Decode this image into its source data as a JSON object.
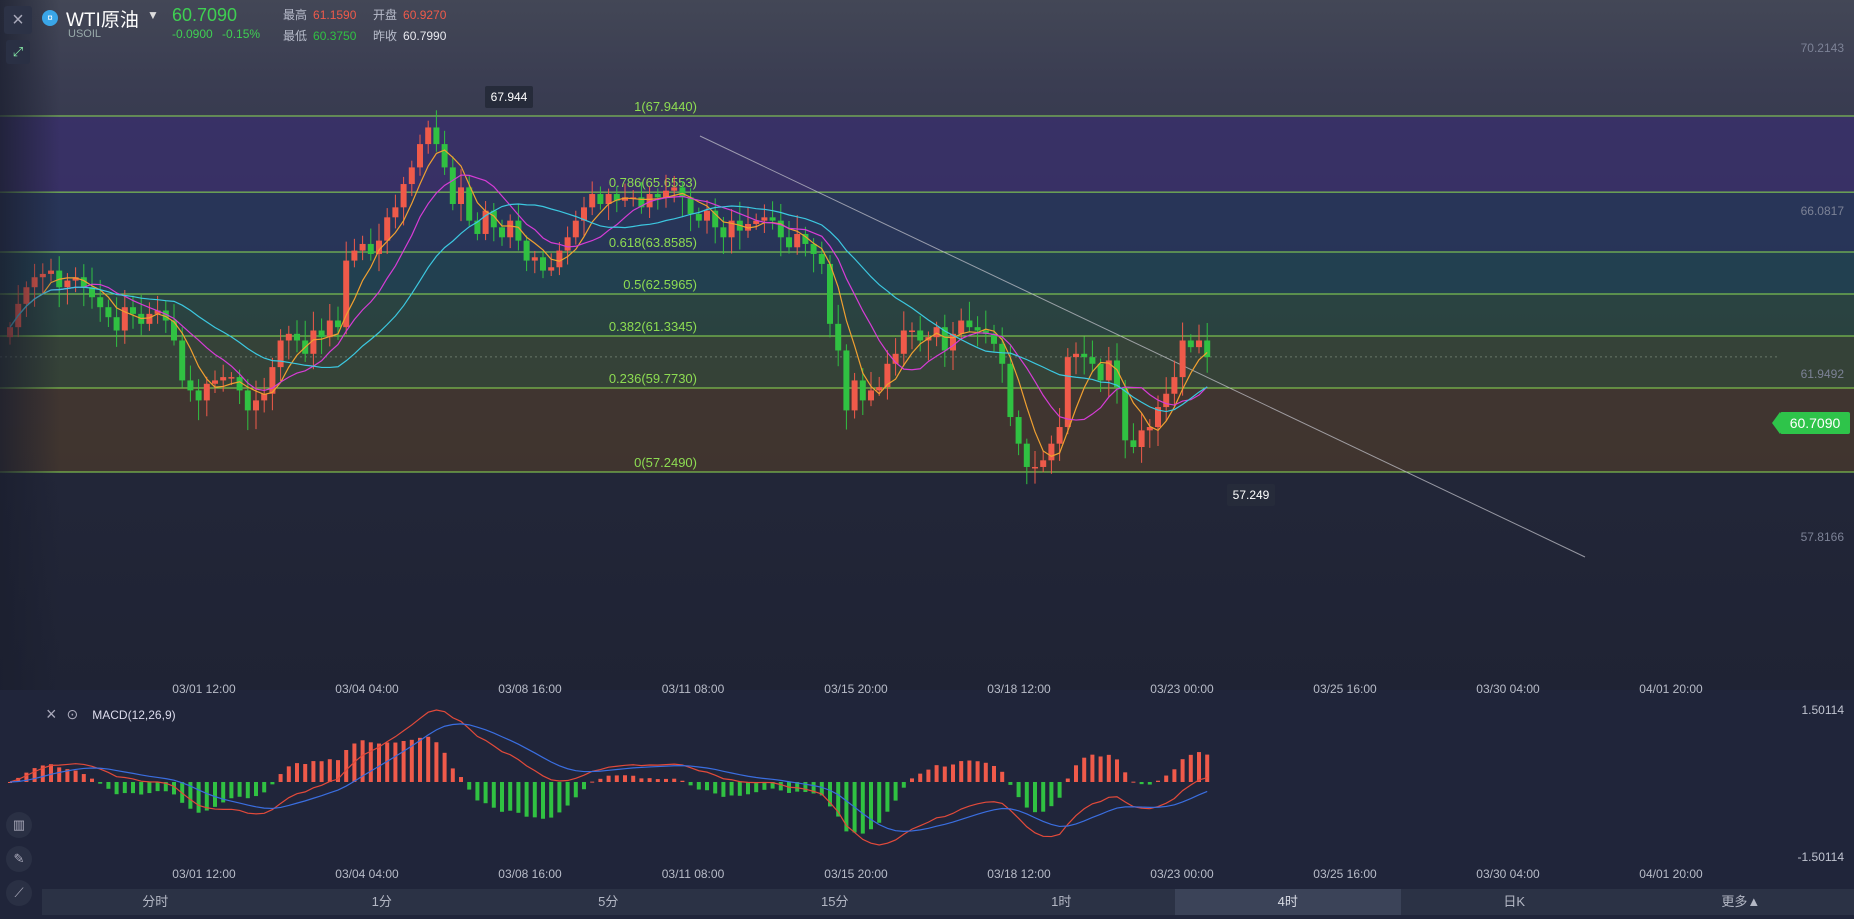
{
  "symbol": {
    "name": "WTI原油",
    "code": "USOIL",
    "price": "60.7090",
    "change": "-0.0900",
    "change_pct": "-0.15%",
    "high_label": "最高",
    "high": "61.1590",
    "open_label": "开盘",
    "open": "60.9270",
    "low_label": "最低",
    "low": "60.3750",
    "prev_close_label": "昨收",
    "prev_close": "60.7990"
  },
  "colors": {
    "up": "#ef5a4a",
    "down": "#30c142",
    "fib_line": "#8ddc52",
    "ma_orange": "#f0a030",
    "ma_magenta": "#d63cd6",
    "ma_cyan": "#3cc8e0",
    "macd_dif": "#e24a3a",
    "macd_dea": "#3a6ee0"
  },
  "icons": {
    "close": "close-icon",
    "draw": "draw-tool-icon",
    "indicator_settings": "gear-icon",
    "candles": "candlestick-icon",
    "pencil": "pencil-icon",
    "chart_type": "line-chart-icon"
  },
  "price_axis": {
    "labels": [
      "70.2143",
      "66.0817",
      "61.9492",
      "57.8166"
    ],
    "current": "60.7090"
  },
  "macd_axis": {
    "top": "1.50114",
    "bottom": "-1.50114"
  },
  "time_labels": [
    "03/01 12:00",
    "03/04 04:00",
    "03/08 16:00",
    "03/11 08:00",
    "03/15 20:00",
    "03/18 12:00",
    "03/23 00:00",
    "03/25 16:00",
    "03/30 04:00",
    "04/01 20:00"
  ],
  "macd_title": "MACD(12,26,9)",
  "timeframes": [
    "分时",
    "1分",
    "5分",
    "15分",
    "1时",
    "4时",
    "日K",
    "更多▲"
  ],
  "active_timeframe": "4时",
  "chart_data": {
    "type": "candlestick",
    "ylim": [
      55.5,
      71.0
    ],
    "fibonacci": [
      {
        "level": 1,
        "label": "1(67.9440)",
        "price": 67.944
      },
      {
        "level": 0.786,
        "label": "0.786(65.6553)",
        "price": 65.6553
      },
      {
        "level": 0.618,
        "label": "0.618(63.8585)",
        "price": 63.8585
      },
      {
        "level": 0.5,
        "label": "0.5(62.5965)",
        "price": 62.5965
      },
      {
        "level": 0.382,
        "label": "0.382(61.3345)",
        "price": 61.3345
      },
      {
        "level": 0.236,
        "label": "0.236(59.7730)",
        "price": 59.773
      },
      {
        "level": 0,
        "label": "0(57.2490)",
        "price": 57.249
      }
    ],
    "markers": [
      {
        "label": "67.944",
        "price": 67.944
      },
      {
        "label": "57.249",
        "price": 57.249
      }
    ],
    "close": [
      61.6,
      62.3,
      62.8,
      63.1,
      63.2,
      63.3,
      62.8,
      63.0,
      63.1,
      62.8,
      62.5,
      62.2,
      61.9,
      61.5,
      62.2,
      62.0,
      61.7,
      62.0,
      62.1,
      61.8,
      61.2,
      60.0,
      59.7,
      59.4,
      59.9,
      60.0,
      60.1,
      60.1,
      59.7,
      59.1,
      59.4,
      59.6,
      60.4,
      61.2,
      61.4,
      61.2,
      60.8,
      61.5,
      61.3,
      61.8,
      61.6,
      63.6,
      63.9,
      64.1,
      63.8,
      64.2,
      64.9,
      65.2,
      65.9,
      66.4,
      67.1,
      67.6,
      67.1,
      66.4,
      65.3,
      65.8,
      64.8,
      64.4,
      65.1,
      64.6,
      64.3,
      64.8,
      64.2,
      63.6,
      63.7,
      63.3,
      63.4,
      63.9,
      64.3,
      64.8,
      65.2,
      65.6,
      65.3,
      65.6,
      65.4,
      65.5,
      65.5,
      65.2,
      65.6,
      65.5,
      65.7,
      65.8,
      65.5,
      65.0,
      64.8,
      65.1,
      64.6,
      64.3,
      64.8,
      64.5,
      64.7,
      64.8,
      64.9,
      64.8,
      64.3,
      64.0,
      64.4,
      64.1,
      63.8,
      63.5,
      61.7,
      60.9,
      59.1,
      60.0,
      59.4,
      59.7,
      59.8,
      60.5,
      60.8,
      61.5,
      61.5,
      61.2,
      61.3,
      61.6,
      60.9,
      61.4,
      61.8,
      61.6,
      61.5,
      61.4,
      61.1,
      60.5,
      58.9,
      58.1,
      57.4,
      57.4,
      57.6,
      58.1,
      58.6,
      60.7,
      60.8,
      60.7,
      60.5,
      60.0,
      60.6,
      59.8,
      58.2,
      58.0,
      58.5,
      58.6,
      59.2,
      59.6,
      60.1,
      61.2,
      61.0,
      61.2,
      60.7
    ]
  }
}
